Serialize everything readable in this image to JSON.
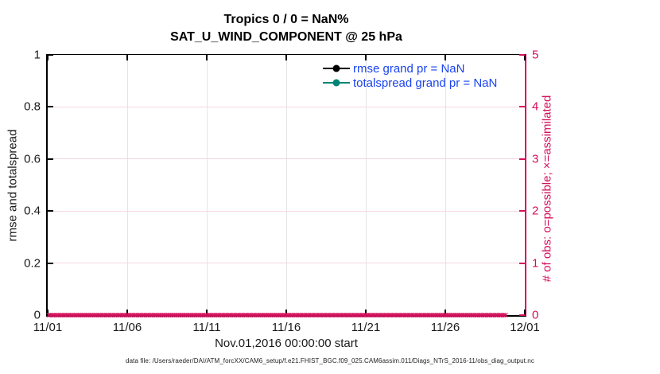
{
  "title": {
    "line1": "Tropics 0 / 0 = NaN%",
    "line2": "SAT_U_WIND_COMPONENT @ 25 hPa"
  },
  "legend": {
    "text_color": "#1a43f0",
    "items": [
      {
        "label": "rmse grand pr = NaN",
        "color": "#000000"
      },
      {
        "label": "totalspread grand pr = NaN",
        "color": "#008577"
      }
    ]
  },
  "left_axis": {
    "label": "rmse and totalspread",
    "ticks": [
      "0",
      "0.2",
      "0.4",
      "0.6",
      "0.8",
      "1"
    ],
    "color": "#000000"
  },
  "right_axis": {
    "label": "# of obs: o=possible; ×=assimilated",
    "ticks": [
      "0",
      "1",
      "2",
      "3",
      "4",
      "5"
    ],
    "color": "#d40f5c"
  },
  "x_axis": {
    "ticks": [
      "11/01",
      "11/06",
      "11/11",
      "11/16",
      "11/21",
      "11/26",
      "12/01"
    ],
    "label": "Nov.01,2016 00:00:00 start"
  },
  "obs_band": {
    "marker": "×",
    "count": 230,
    "color": "#d40f5c"
  },
  "footer": {
    "text": "data file: /Users/raeder/DAI/ATM_forcXX/CAM6_setup/f.e21.FHIST_BGC.f09_025.CAM6assim.011/Diags_NTrS_2016-11/obs_diag_output.nc"
  },
  "chart_data": {
    "type": "line",
    "title": "Tropics 0 / 0 = NaN% — SAT_U_WIND_COMPONENT @ 25 hPa",
    "xlabel": "Nov.01,2016 00:00:00 start",
    "x_ticks": [
      "11/01",
      "11/06",
      "11/11",
      "11/16",
      "11/21",
      "11/26",
      "12/01"
    ],
    "x_range": [
      "2016-11-01",
      "2016-12-01"
    ],
    "left_ylabel": "rmse and totalspread",
    "left_ylim": [
      0,
      1
    ],
    "right_ylabel": "# of obs: o=possible; ×=assimilated",
    "right_ylim": [
      0,
      5
    ],
    "grid": true,
    "legend_position": "upper-right-inside",
    "series": [
      {
        "name": "rmse grand pr = NaN",
        "axis": "left",
        "color": "#000000",
        "marker": "filled-circle",
        "values": [],
        "note": "all values NaN - no curve drawn"
      },
      {
        "name": "totalspread grand pr = NaN",
        "axis": "left",
        "color": "#008577",
        "marker": "filled-circle",
        "values": [],
        "note": "all values NaN - no curve drawn"
      },
      {
        "name": "# of obs assimilated",
        "axis": "right",
        "color": "#d40f5c",
        "marker": "x",
        "values_constant": 0,
        "note": "dense × markers at 0 for every observation time from 11/01 through 12/01"
      }
    ]
  }
}
